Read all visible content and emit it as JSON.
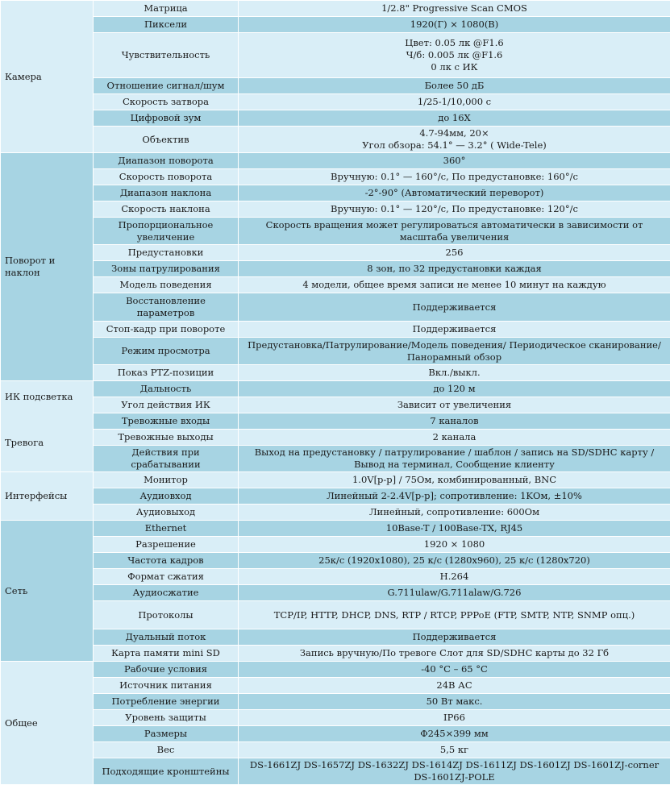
{
  "colors": {
    "light_row": "#d9eef7",
    "dark_row": "#a7d4e3",
    "border": "#ffffff",
    "text": "#1b1b1b"
  },
  "groups": [
    {
      "label": "Камера",
      "rows": [
        {
          "param": "Матрица",
          "value": [
            "1/2.8\" Progressive Scan CMOS"
          ]
        },
        {
          "param": "Пиксели",
          "value": [
            "1920(Г) × 1080(В)"
          ]
        },
        {
          "param": "Чувствительность",
          "value": [
            "Цвет: 0.05 лк @F1.6",
            "Ч/б: 0.005 лк @F1.6",
            "0 лк с ИК"
          ]
        },
        {
          "param": "Отношение сигнал/шум",
          "value": [
            "Более 50 дБ"
          ]
        },
        {
          "param": "Скорость затвора",
          "value": [
            "1/25-1/10,000  с"
          ]
        },
        {
          "param": "Цифровой зум",
          "value": [
            "до 16X"
          ]
        },
        {
          "param": "Объектив",
          "value": [
            "4.7-94мм,  20×",
            "Угол обзора: 54.1°  — 3.2° ( Wide-Tele)"
          ]
        }
      ]
    },
    {
      "label": "Поворот и наклон",
      "rows": [
        {
          "param": "Диапазон поворота",
          "value": [
            "360°"
          ]
        },
        {
          "param": "Скорость поворота",
          "value": [
            "Вручную: 0.1°  — 160°/с, По предустановке: 160°/с"
          ]
        },
        {
          "param": "Диапазон наклона",
          "value": [
            "-2°-90° (Автоматический переворот)"
          ]
        },
        {
          "param": "Скорость наклона",
          "value": [
            "Вручную: 0.1°  — 120°/с, По предустановке: 120°/с"
          ]
        },
        {
          "param": "Пропорциональное увеличение",
          "value": [
            "Скорость вращения может регулироваться автоматически в зависимости от масштаба увеличения"
          ]
        },
        {
          "param": "Предустановки",
          "value": [
            "256"
          ]
        },
        {
          "param": "Зоны патрулирования",
          "value": [
            "8 зон, по 32 предустановки каждая"
          ]
        },
        {
          "param": "Модель поведения",
          "value": [
            "4 модели, общее время записи не менее 10 минут на каждую"
          ]
        },
        {
          "param": "Восстановление параметров",
          "value": [
            "Поддерживается"
          ]
        },
        {
          "param": "Стоп-кадр при повороте",
          "value": [
            "Поддерживается"
          ]
        },
        {
          "param": "Режим просмотра",
          "value": [
            "Предустановка/Патрулирование/Модель поведения/ Периодическое сканирование/ Панорамный обзор"
          ]
        },
        {
          "param": "Показ PTZ-позиции",
          "value": [
            "Вкл./выкл."
          ]
        }
      ]
    },
    {
      "label": "ИК подсветка",
      "label2": "Тревога",
      "rows": [
        {
          "param": "Дальность",
          "value": [
            "до 120 м"
          ]
        },
        {
          "param": "Угол действия ИК",
          "value": [
            "Зависит от увеличения"
          ]
        },
        {
          "param": "Тревожные входы",
          "value": [
            "7 каналов"
          ]
        },
        {
          "param": "Тревожные выходы",
          "value": [
            "2 канала"
          ]
        },
        {
          "param": "Действия при срабатывании",
          "value": [
            "Выход на предустановку  / патрулирование  / шаблон  / запись  на SD/SDHC карту  / Вывод на терминал, Сообщение клиенту"
          ]
        }
      ]
    },
    {
      "label": "Интерфейсы",
      "rows": [
        {
          "param": "Монитор",
          "value": [
            "1.0V[p-p] / 75Ом, комбинированный, BNC"
          ]
        },
        {
          "param": "Аудиовход",
          "value": [
            "Линейный 2-2.4V[p-p]; сопротивление: 1KОм, ±10%"
          ]
        },
        {
          "param": "Аудиовыход",
          "value": [
            "Линейный, сопротивление: 600Ом"
          ]
        }
      ]
    },
    {
      "label": "Сеть",
      "rows": [
        {
          "param": "Ethernet",
          "value": [
            "10Base-T  /  100Base-TX,  RJ45"
          ]
        },
        {
          "param": "Разрешение",
          "value": [
            "1920 × 1080"
          ]
        },
        {
          "param": "Частота кадров",
          "value": [
            "25к/с (1920x1080),  25 к/с (1280x960),  25 к/с (1280x720)"
          ]
        },
        {
          "param": "Формат сжатия",
          "value": [
            "H.264"
          ]
        },
        {
          "param": "Аудиосжатие",
          "value": [
            "G.711ulaw/G.711alaw/G.726"
          ]
        },
        {
          "param": "Протоколы",
          "value": [
            "TCP/IP,  HTTP,  DHCP,  DNS,  RTP  /  RTCP,  PPPoE  (FTP,  SMTP,  NTP,  SNMP опц.)"
          ]
        },
        {
          "param": "Дуальный поток",
          "value": [
            "Поддерживается"
          ]
        },
        {
          "param": "Карта памяти mini SD",
          "value": [
            "Запись вручную/По тревоге Слот для SD/SDHC  карты до 32 Гб"
          ]
        }
      ]
    },
    {
      "label": "Общее",
      "rows": [
        {
          "param": "Рабочие условия",
          "value": [
            "-40 °C – 65 °C"
          ]
        },
        {
          "param": "Источник питания",
          "value": [
            "24В АС"
          ]
        },
        {
          "param": "Потребление энергии",
          "value": [
            "50 Вт макс."
          ]
        },
        {
          "param": "Уровень защиты",
          "value": [
            "IP66"
          ]
        },
        {
          "param": "Размеры",
          "value": [
            "Φ245×399  мм"
          ]
        },
        {
          "param": "Вес",
          "value": [
            "5,5 кг"
          ]
        },
        {
          "param": "Подходящие кронштейны",
          "value": [
            "DS-1661ZJ  DS-1657ZJ  DS-1632ZJ  DS-1614ZJ  DS-1611ZJ  DS-1601ZJ  DS-1601ZJ-corner DS-1601ZJ-POLE"
          ]
        }
      ]
    }
  ]
}
